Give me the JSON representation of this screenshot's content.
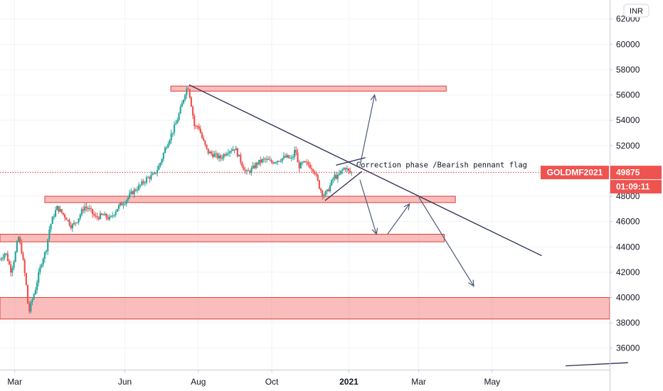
{
  "chart_data": {
    "type": "candlestick",
    "currency": "INR",
    "symbol": "GOLDMF2021",
    "last_price": "49875",
    "countdown": "01:09:11",
    "annotation": "Correction phase /Bearish pennant flag",
    "ylim": [
      34300,
      63500
    ],
    "y_ticks": [
      36000,
      38000,
      40000,
      42000,
      44000,
      46000,
      48000,
      50000,
      52000,
      54000,
      56000,
      58000,
      60000,
      62000
    ],
    "x_tick_labels": [
      {
        "label": "Mar",
        "t": 0.4,
        "bold": false
      },
      {
        "label": "Jun",
        "t": 3.4,
        "bold": false
      },
      {
        "label": "Aug",
        "t": 5.4,
        "bold": false
      },
      {
        "label": "Oct",
        "t": 7.4,
        "bold": false
      },
      {
        "label": "2021",
        "t": 9.5,
        "bold": true
      },
      {
        "label": "Mar",
        "t": 11.4,
        "bold": false
      },
      {
        "label": "May",
        "t": 13.4,
        "bold": false
      }
    ],
    "xlim": [
      0,
      16.6
    ],
    "price_path": [
      [
        0.0,
        43000
      ],
      [
        0.15,
        43600
      ],
      [
        0.3,
        42100
      ],
      [
        0.4,
        43200
      ],
      [
        0.5,
        44800
      ],
      [
        0.6,
        43500
      ],
      [
        0.72,
        40800
      ],
      [
        0.78,
        38700
      ],
      [
        0.85,
        39600
      ],
      [
        0.95,
        40500
      ],
      [
        1.05,
        41800
      ],
      [
        1.15,
        43000
      ],
      [
        1.25,
        43700
      ],
      [
        1.35,
        45500
      ],
      [
        1.45,
        46400
      ],
      [
        1.55,
        47100
      ],
      [
        1.65,
        46800
      ],
      [
        1.8,
        46300
      ],
      [
        1.95,
        45600
      ],
      [
        2.1,
        46100
      ],
      [
        2.3,
        47200
      ],
      [
        2.45,
        46900
      ],
      [
        2.6,
        46300
      ],
      [
        2.8,
        46500
      ],
      [
        3.0,
        46200
      ],
      [
        3.2,
        47100
      ],
      [
        3.4,
        47600
      ],
      [
        3.6,
        48300
      ],
      [
        3.8,
        48800
      ],
      [
        4.0,
        49400
      ],
      [
        4.2,
        49700
      ],
      [
        4.35,
        50500
      ],
      [
        4.5,
        51800
      ],
      [
        4.65,
        52800
      ],
      [
        4.8,
        53800
      ],
      [
        4.95,
        55200
      ],
      [
        5.05,
        56300
      ],
      [
        5.12,
        56700
      ],
      [
        5.2,
        55400
      ],
      [
        5.3,
        53400
      ],
      [
        5.4,
        53600
      ],
      [
        5.5,
        52600
      ],
      [
        5.65,
        51500
      ],
      [
        5.8,
        51300
      ],
      [
        6.0,
        51000
      ],
      [
        6.2,
        51600
      ],
      [
        6.4,
        51800
      ],
      [
        6.55,
        50800
      ],
      [
        6.7,
        49800
      ],
      [
        6.85,
        50100
      ],
      [
        7.0,
        50600
      ],
      [
        7.2,
        50900
      ],
      [
        7.4,
        50700
      ],
      [
        7.6,
        50900
      ],
      [
        7.8,
        51100
      ],
      [
        7.95,
        50900
      ],
      [
        8.05,
        51800
      ],
      [
        8.12,
        50300
      ],
      [
        8.25,
        50600
      ],
      [
        8.4,
        50500
      ],
      [
        8.55,
        50100
      ],
      [
        8.7,
        48700
      ],
      [
        8.8,
        48100
      ],
      [
        8.9,
        48300
      ],
      [
        9.0,
        48900
      ],
      [
        9.1,
        49600
      ],
      [
        9.2,
        49500
      ],
      [
        9.3,
        50000
      ],
      [
        9.4,
        50300
      ],
      [
        9.5,
        49900
      ],
      [
        9.6,
        49875
      ]
    ],
    "zones": [
      {
        "t0": 4.65,
        "t1": 12.15,
        "low": 56300,
        "high": 56700
      },
      {
        "t0": 1.22,
        "t1": 12.4,
        "low": 47500,
        "high": 48000
      },
      {
        "t0": 0.0,
        "t1": 12.1,
        "low": 44400,
        "high": 45000
      },
      {
        "t0": 0.0,
        "t1": 17.1,
        "low": 38300,
        "high": 40000
      }
    ],
    "trendlines": [
      {
        "t0": 5.15,
        "v0": 56800,
        "t1": 14.75,
        "v1": 43300
      },
      {
        "t0": 9.15,
        "v0": 50450,
        "t1": 9.95,
        "v1": 51050
      },
      {
        "t0": 8.85,
        "v0": 47650,
        "t1": 9.85,
        "v1": 49950
      },
      {
        "t0": 15.4,
        "v0": 34600,
        "t1": 17.1,
        "v1": 34850
      }
    ],
    "arrows": [
      {
        "t0": 9.8,
        "v0": 50400,
        "t1": 10.2,
        "v1": 56000
      },
      {
        "t0": 9.8,
        "v0": 49300,
        "t1": 10.25,
        "v1": 45000
      },
      {
        "t0": 10.55,
        "v0": 45000,
        "t1": 11.15,
        "v1": 47400
      },
      {
        "t0": 11.4,
        "v0": 47950,
        "t1": 12.9,
        "v1": 40900
      }
    ]
  }
}
